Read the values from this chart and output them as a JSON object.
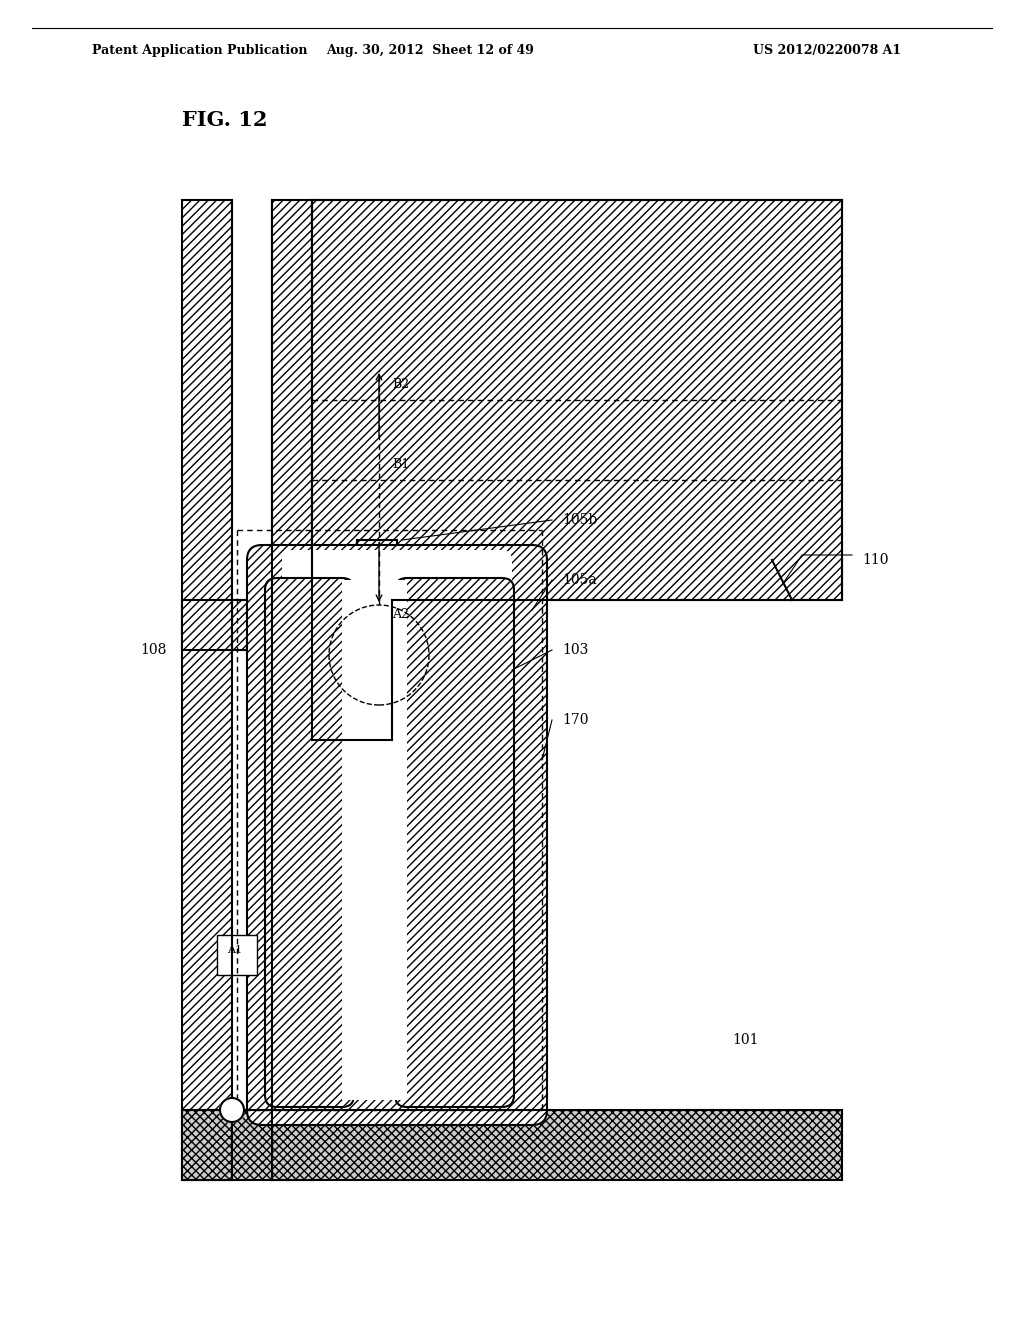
{
  "bg_color": "#ffffff",
  "title_text": "FIG. 12",
  "header_left": "Patent Application Publication",
  "header_mid": "Aug. 30, 2012  Sheet 12 of 49",
  "header_right": "US 2012/0220078 A1",
  "line_color": "#000000",
  "line_width": 1.5,
  "label_fontsize": 10,
  "title_fontsize": 15
}
